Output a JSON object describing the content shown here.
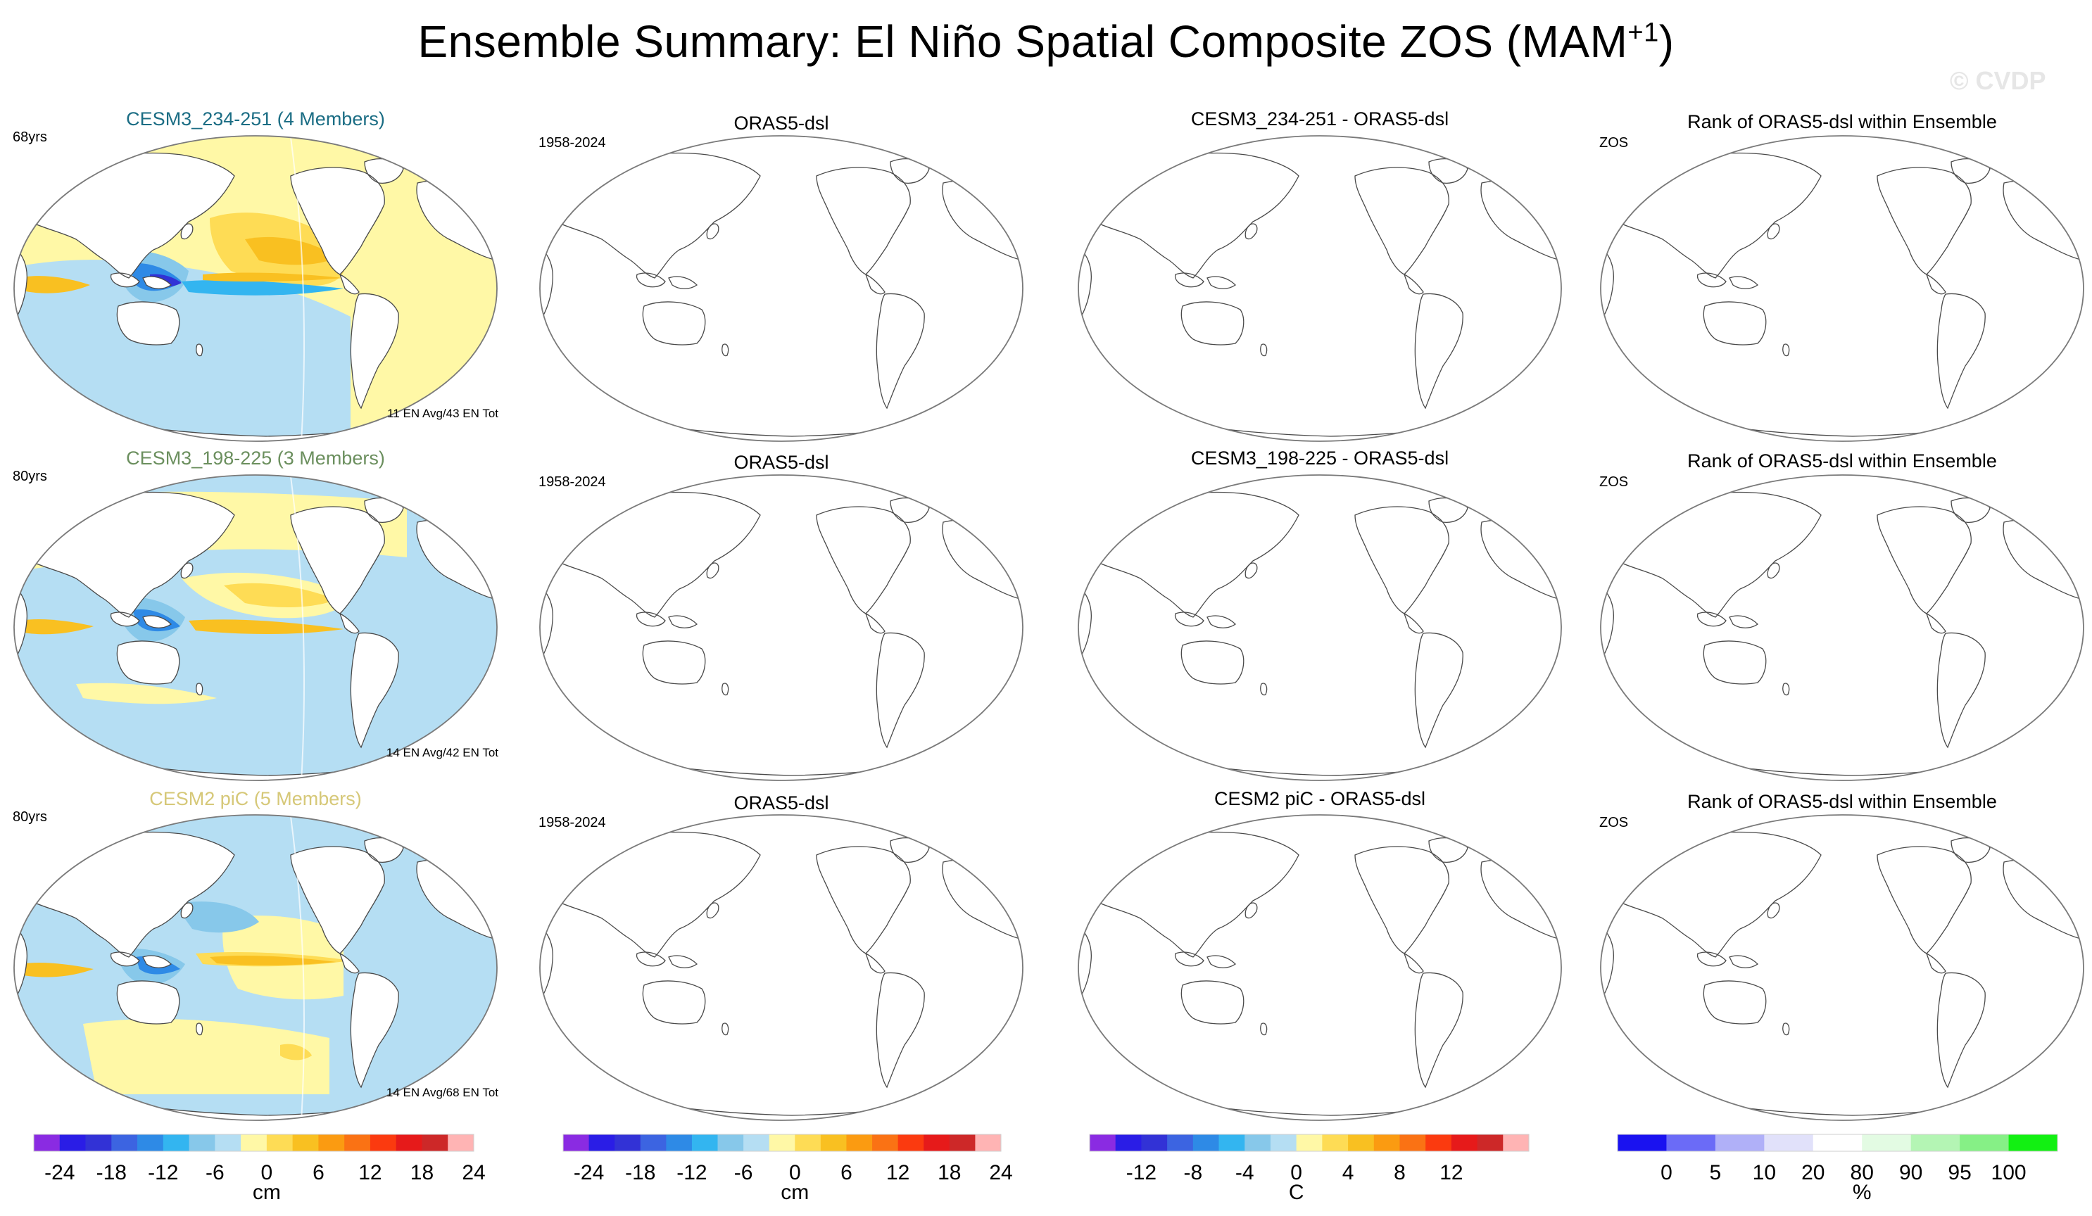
{
  "title": "Ensemble Summary: El Niño Spatial Composite ZOS (MAM",
  "title_sup": "+1",
  "title_close": ")",
  "watermark": "© CVDP",
  "rows": [
    {
      "model_title": "CESM3_234-251 (4 Members)",
      "model_title_color": "#1b6d84",
      "years": "68yrs",
      "en_note": "11 EN Avg/43 EN Tot",
      "obs_title": "ORAS5-dsl",
      "obs_years": "1958-2024",
      "diff_title": "CESM3_234-251 - ORAS5-dsl",
      "rank_title": "Rank of ORAS5-dsl within Ensemble",
      "rank_var": "ZOS"
    },
    {
      "model_title": "CESM3_198-225 (3 Members)",
      "model_title_color": "#6b8f5e",
      "years": "80yrs",
      "en_note": "14 EN Avg/42 EN Tot",
      "obs_title": "ORAS5-dsl",
      "obs_years": "1958-2024",
      "diff_title": "CESM3_198-225 - ORAS5-dsl",
      "rank_title": "Rank of ORAS5-dsl within Ensemble",
      "rank_var": "ZOS"
    },
    {
      "model_title": "CESM2 piC (5 Members)",
      "model_title_color": "#d6c878",
      "years": "80yrs",
      "en_note": "14 EN Avg/68 EN Tot",
      "obs_title": "ORAS5-dsl",
      "obs_years": "1958-2024",
      "diff_title": "CESM2 piC - ORAS5-dsl",
      "rank_title": "Rank of ORAS5-dsl within Ensemble",
      "rank_var": "ZOS"
    }
  ],
  "colorbars": [
    {
      "colors": [
        "#8a2be2",
        "#2a1de6",
        "#3232d6",
        "#3c64e1",
        "#2e8ae6",
        "#33b5f0",
        "#87c8ea",
        "#b5def3",
        "#fff8a6",
        "#fedc55",
        "#f9c021",
        "#fb9b11",
        "#fa7214",
        "#fb3a0f",
        "#e61a1a",
        "#cd2828",
        "#ffb4b4"
      ],
      "ticks": [
        "-24",
        "-18",
        "-12",
        "-6",
        "0",
        "6",
        "12",
        "18",
        "24"
      ],
      "tick_boundaries": [
        1,
        3,
        5,
        7,
        9,
        11,
        13,
        15,
        17
      ],
      "unit": "cm"
    },
    {
      "colors": [
        "#8a2be2",
        "#2a1de6",
        "#3232d6",
        "#3c64e1",
        "#2e8ae6",
        "#33b5f0",
        "#87c8ea",
        "#b5def3",
        "#fff8a6",
        "#fedc55",
        "#f9c021",
        "#fb9b11",
        "#fa7214",
        "#fb3a0f",
        "#e61a1a",
        "#cd2828",
        "#ffb4b4"
      ],
      "ticks": [
        "-24",
        "-18",
        "-12",
        "-6",
        "0",
        "6",
        "12",
        "18",
        "24"
      ],
      "tick_boundaries": [
        1,
        3,
        5,
        7,
        9,
        11,
        13,
        15,
        17
      ],
      "unit": "cm"
    },
    {
      "colors": [
        "#8a2be2",
        "#2a1de6",
        "#3232d6",
        "#3c64e1",
        "#2e8ae6",
        "#33b5f0",
        "#87c8ea",
        "#b5def3",
        "#fff8a6",
        "#fedc55",
        "#f9c021",
        "#fb9b11",
        "#fa7214",
        "#fb3a0f",
        "#e61a1a",
        "#cd2828",
        "#ffb4b4"
      ],
      "ticks": [
        "-12",
        "-8",
        "-4",
        "0",
        "4",
        "8",
        "12"
      ],
      "tick_boundaries": [
        2,
        4,
        6,
        8,
        10,
        12,
        14
      ],
      "unit": "C"
    },
    {
      "colors": [
        "#1a12f0",
        "#6b6bf7",
        "#b0b0f8",
        "#e1e1fa",
        "#ffffff",
        "#e3fbe3",
        "#b4f5b4",
        "#86f086",
        "#12f012"
      ],
      "ticks": [
        "0",
        "5",
        "10",
        "20",
        "80",
        "90",
        "95",
        "100"
      ],
      "tick_boundaries": [
        1,
        2,
        3,
        4,
        5,
        6,
        7,
        8
      ],
      "unit": "%"
    }
  ]
}
